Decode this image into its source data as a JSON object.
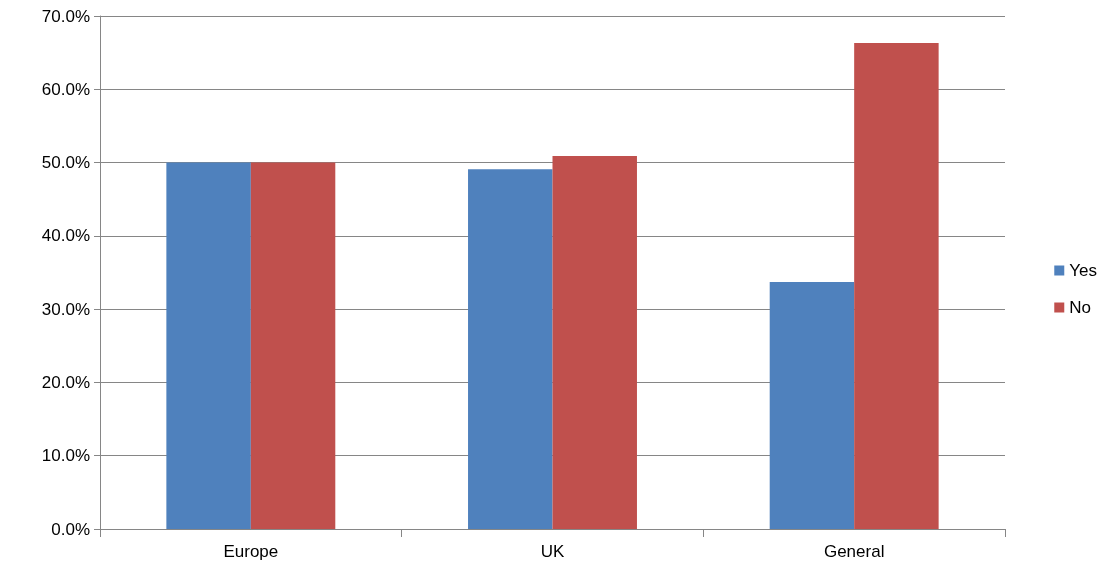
{
  "chart_data": {
    "type": "bar",
    "categories": [
      "Europe",
      "UK",
      "General"
    ],
    "series": [
      {
        "name": "Yes",
        "color": "#4f81bd",
        "values": [
          50.0,
          49.1,
          33.7
        ]
      },
      {
        "name": "No",
        "color": "#c0504d",
        "values": [
          50.0,
          50.9,
          66.3
        ]
      }
    ],
    "ylim": [
      0,
      70
    ],
    "yticks": [
      {
        "value": 0,
        "label": "0.0%"
      },
      {
        "value": 10,
        "label": "10.0%"
      },
      {
        "value": 20,
        "label": "20.0%"
      },
      {
        "value": 30,
        "label": "30.0%"
      },
      {
        "value": 40,
        "label": "40.0%"
      },
      {
        "value": 50,
        "label": "50.0%"
      },
      {
        "value": 60,
        "label": "60.0%"
      },
      {
        "value": 70,
        "label": "70.0%"
      }
    ],
    "grid": "y",
    "legend": "right"
  }
}
